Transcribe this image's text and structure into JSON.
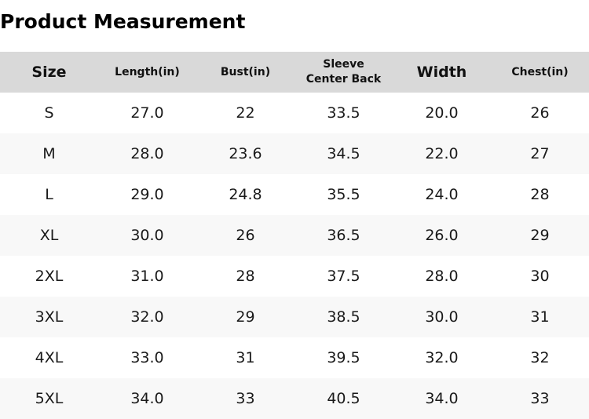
{
  "title": "Product Measurement",
  "table": {
    "headers": [
      {
        "lines": [
          "Size"
        ],
        "size": "big"
      },
      {
        "lines": [
          "Length(in)"
        ],
        "size": "small"
      },
      {
        "lines": [
          "Bust(in)"
        ],
        "size": "small"
      },
      {
        "lines": [
          "Sleeve",
          "Center Back"
        ],
        "size": "small"
      },
      {
        "lines": [
          "Width"
        ],
        "size": "big"
      },
      {
        "lines": [
          "Chest(in)"
        ],
        "size": "small"
      }
    ],
    "rows": [
      [
        "S",
        "27.0",
        "22",
        "33.5",
        "20.0",
        "26"
      ],
      [
        "M",
        "28.0",
        "23.6",
        "34.5",
        "22.0",
        "27"
      ],
      [
        "L",
        "29.0",
        "24.8",
        "35.5",
        "24.0",
        "28"
      ],
      [
        "XL",
        "30.0",
        "26",
        "36.5",
        "26.0",
        "29"
      ],
      [
        "2XL",
        "31.0",
        "28",
        "37.5",
        "28.0",
        "30"
      ],
      [
        "3XL",
        "32.0",
        "29",
        "38.5",
        "30.0",
        "31"
      ],
      [
        "4XL",
        "33.0",
        "31",
        "39.5",
        "32.0",
        "32"
      ],
      [
        "5XL",
        "34.0",
        "33",
        "40.5",
        "34.0",
        "33"
      ]
    ]
  },
  "colors": {
    "header_bg": "#d9d9d9",
    "row_alt_bg": "#f8f8f8",
    "row_bg": "#ffffff",
    "text": "#111111"
  }
}
